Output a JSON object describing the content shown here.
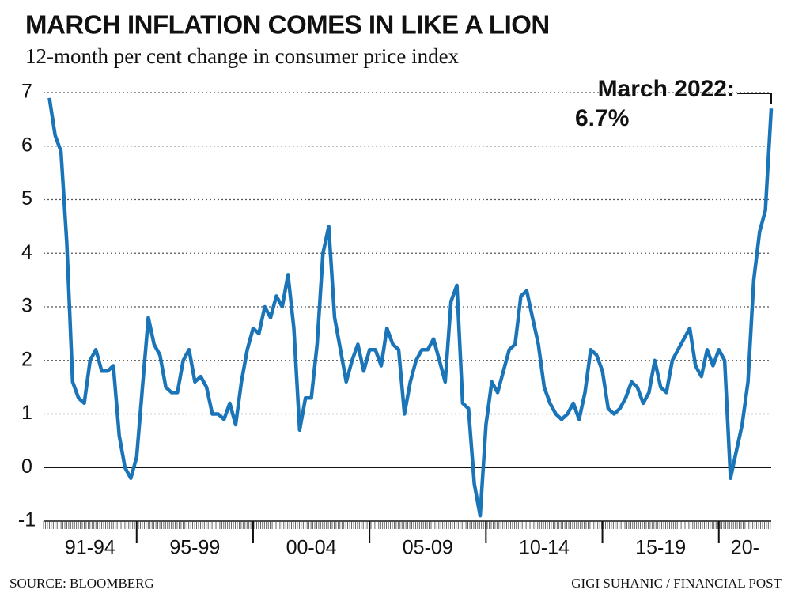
{
  "chart_data": {
    "type": "line",
    "title": "MARCH INFLATION COMES IN LIKE A LION",
    "subtitle": "12-month per cent change in consumer price index",
    "annotation": [
      "March 2022:",
      "6.7%"
    ],
    "source": "SOURCE: BLOOMBERG",
    "credit": "GIGI SUHANIC / FINANCIAL POST",
    "categories": [
      "91-94",
      "95-99",
      "00-04",
      "05-09",
      "10-14",
      "15-19",
      "20-"
    ],
    "series": [
      {
        "color": "#1a74b8",
        "values": [
          [
            6.9,
            6.2,
            5.9,
            4.2,
            1.6,
            1.3,
            1.2,
            2.0,
            2.2,
            1.8,
            1.8,
            1.9,
            0.6,
            0.0,
            -0.2,
            0.2
          ],
          [
            1.5,
            2.8,
            2.3,
            2.1,
            1.5,
            1.4,
            1.4,
            2.0,
            2.2,
            1.6,
            1.7,
            1.5,
            1.0,
            1.0,
            0.9,
            1.2,
            0.8,
            1.6,
            2.2,
            2.6
          ],
          [
            2.5,
            3.0,
            2.8,
            3.2,
            3.0,
            3.6,
            2.6,
            0.7,
            1.3,
            1.3,
            2.3,
            4.0,
            4.5,
            2.8,
            2.2,
            1.6,
            2.0,
            2.3,
            1.8,
            2.2
          ],
          [
            2.2,
            1.9,
            2.6,
            2.3,
            2.2,
            1.0,
            1.6,
            2.0,
            2.2,
            2.2,
            2.4,
            2.0,
            1.6,
            3.1,
            3.4,
            1.2,
            1.1,
            -0.3,
            -0.9,
            0.8
          ],
          [
            1.6,
            1.4,
            1.8,
            2.2,
            2.3,
            3.2,
            3.3,
            2.8,
            2.3,
            1.5,
            1.2,
            1.0,
            0.9,
            1.0,
            1.2,
            0.9,
            1.4,
            2.2,
            2.1,
            1.8
          ],
          [
            1.1,
            1.0,
            1.1,
            1.3,
            1.6,
            1.5,
            1.2,
            1.4,
            2.0,
            1.5,
            1.4,
            2.0,
            2.2,
            2.4,
            2.6,
            1.9,
            1.7,
            2.2,
            1.9,
            2.2
          ],
          [
            2.0,
            -0.2,
            0.3,
            0.8,
            1.6,
            3.5,
            4.4,
            4.8,
            6.7
          ]
        ]
      }
    ],
    "ylim": [
      -1,
      7
    ],
    "yticks": [
      -1,
      0,
      1,
      2,
      3,
      4,
      5,
      6,
      7
    ],
    "grid": true
  }
}
